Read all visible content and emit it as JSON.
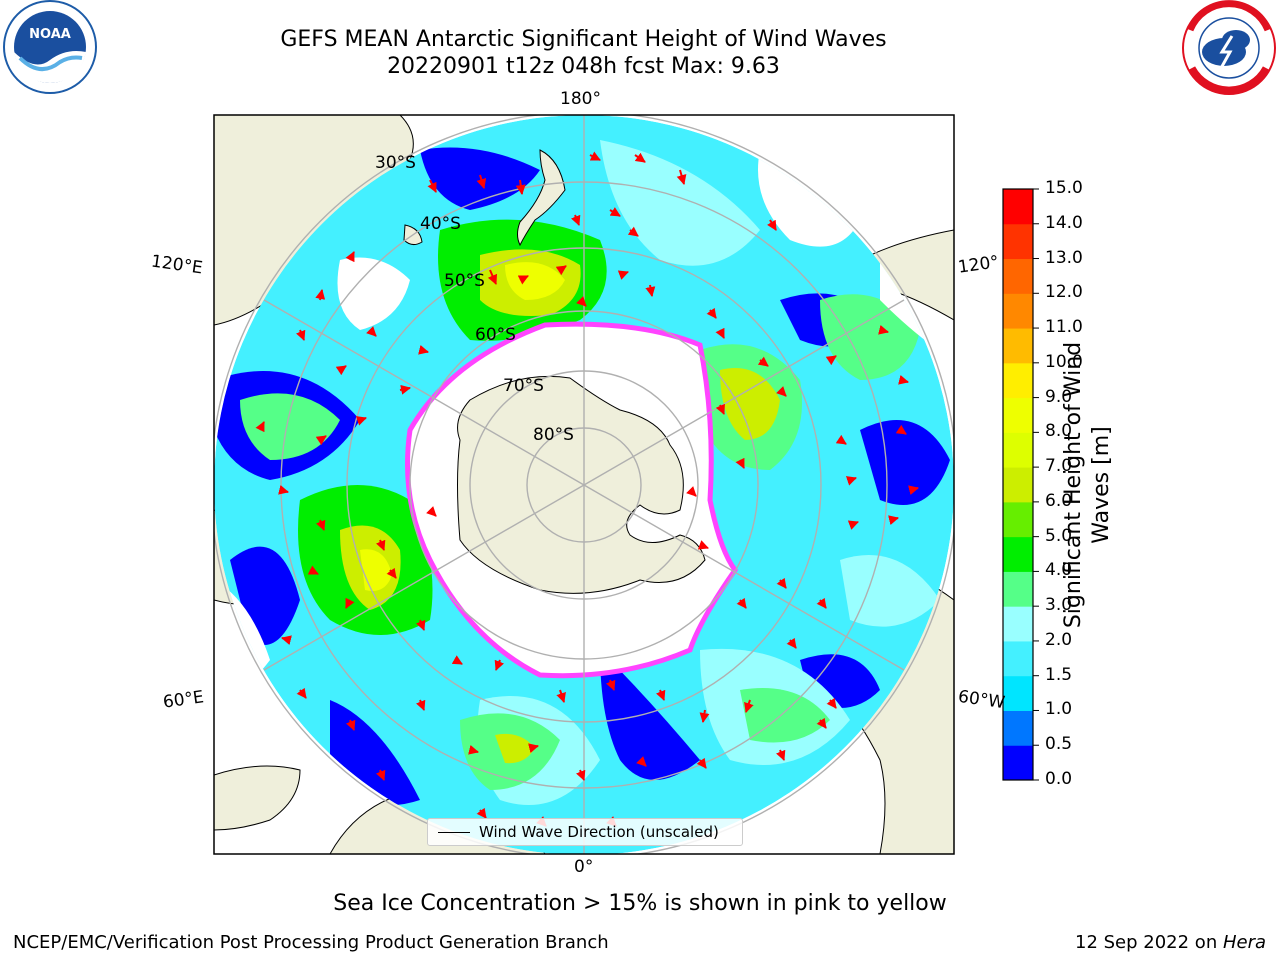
{
  "header": {
    "title_line1": "GEFS MEAN Antarctic Significant Height of Wind Waves",
    "title_line2": "20220901 t12z 048h fcst   Max: 9.63"
  },
  "logos": {
    "left": {
      "name": "NOAA",
      "ring_text": "NATIONAL OCEANIC AND ATMOSPHERIC ADMINISTRATION · U.S. DEPARTMENT OF COMMERCE"
    },
    "right": {
      "name": "NATIONAL WEATHER SERVICE"
    }
  },
  "map": {
    "projection": "south-polar-stereographic",
    "lon_labels": {
      "top": "180°",
      "bottom": "0°",
      "upper_left": "120°E",
      "upper_right": "120°",
      "lower_left": "60°E",
      "lower_right": "60°W"
    },
    "lat_labels": [
      "30°S",
      "40°S",
      "50°S",
      "60°S",
      "70°S",
      "80°S"
    ],
    "land_color": "#efefdb",
    "sea_ice_color": "#ff44ff",
    "arrow_color": "#ff0000",
    "legend_label": "Wind Wave Direction (unscaled)"
  },
  "colorbar": {
    "label": "Significant Height of Wind Waves [m]",
    "label_line1": "Significant Height of Wind",
    "label_line2": "Waves [m]",
    "ticks": [
      "0.0",
      "0.5",
      "1.0",
      "1.5",
      "2.0",
      "3.0",
      "4.0",
      "5.0",
      "6.0",
      "7.0",
      "8.0",
      "9.0",
      "10.0",
      "11.0",
      "12.0",
      "13.0",
      "14.0",
      "15.0"
    ],
    "colors": [
      "#0000ff",
      "#0077ff",
      "#00e5ff",
      "#44f0ff",
      "#99ffff",
      "#55ff88",
      "#00ee00",
      "#66ee00",
      "#ccee00",
      "#ddff00",
      "#eeff00",
      "#ffee00",
      "#ffbb00",
      "#ff8800",
      "#ff6600",
      "#ff3300",
      "#ff0000"
    ]
  },
  "annotation": "Sea Ice Concentration > 15% is shown in pink to yellow",
  "footer": {
    "left": "NCEP/EMC/Verification Post Processing Product Generation Branch",
    "right_date": "12 Sep 2022 on ",
    "right_machine": "Hera"
  }
}
